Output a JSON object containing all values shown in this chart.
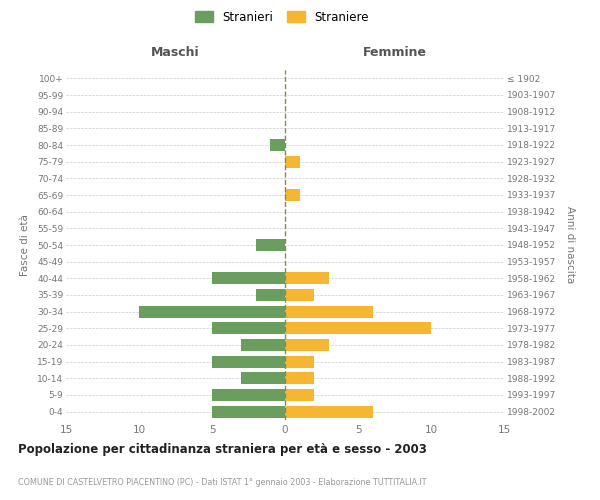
{
  "age_groups": [
    "100+",
    "95-99",
    "90-94",
    "85-89",
    "80-84",
    "75-79",
    "70-74",
    "65-69",
    "60-64",
    "55-59",
    "50-54",
    "45-49",
    "40-44",
    "35-39",
    "30-34",
    "25-29",
    "20-24",
    "15-19",
    "10-14",
    "5-9",
    "0-4"
  ],
  "birth_years": [
    "≤ 1902",
    "1903-1907",
    "1908-1912",
    "1913-1917",
    "1918-1922",
    "1923-1927",
    "1928-1932",
    "1933-1937",
    "1938-1942",
    "1943-1947",
    "1948-1952",
    "1953-1957",
    "1958-1962",
    "1963-1967",
    "1968-1972",
    "1973-1977",
    "1978-1982",
    "1983-1987",
    "1988-1992",
    "1993-1997",
    "1998-2002"
  ],
  "maschi": [
    0,
    0,
    0,
    0,
    1,
    0,
    0,
    0,
    0,
    0,
    2,
    0,
    5,
    2,
    10,
    5,
    3,
    5,
    3,
    5,
    5
  ],
  "femmine": [
    0,
    0,
    0,
    0,
    0,
    1,
    0,
    1,
    0,
    0,
    0,
    0,
    3,
    2,
    6,
    10,
    3,
    2,
    2,
    2,
    6
  ],
  "color_maschi": "#6a9e5f",
  "color_femmine": "#f5b731",
  "title": "Popolazione per cittadinanza straniera per età e sesso - 2003",
  "subtitle": "COMUNE DI CASTELVETRO PIACENTINO (PC) - Dati ISTAT 1° gennaio 2003 - Elaborazione TUTTITALIA.IT",
  "ylabel_left": "Fasce di età",
  "ylabel_right": "Anni di nascita",
  "header_left": "Maschi",
  "header_right": "Femmine",
  "xlim": 15,
  "legend_stranieri": "Stranieri",
  "legend_straniere": "Straniere",
  "bg_color": "#ffffff",
  "grid_color": "#cccccc",
  "xtick_vals": [
    -15,
    -10,
    -5,
    0,
    5,
    10,
    15
  ],
  "xtick_labels": [
    "15",
    "10",
    "5",
    "0",
    "5",
    "10",
    "15"
  ]
}
